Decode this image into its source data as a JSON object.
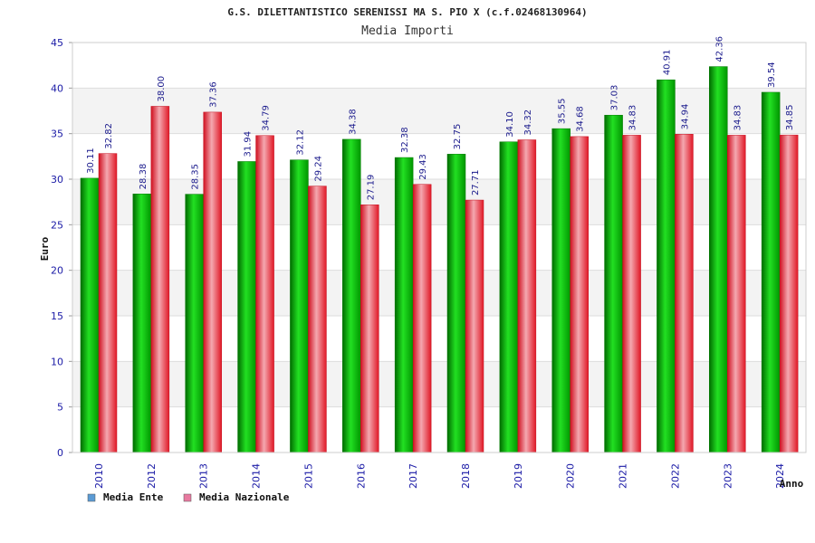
{
  "chart_data": {
    "type": "bar",
    "title": "G.S. DILETTANTISTICO SERENISSI MA S. PIO X (c.f.02468130964)",
    "subtitle": "Media Importi",
    "ylabel": "Euro",
    "xlabel": "Anno",
    "ylim": [
      0,
      45
    ],
    "yticks": [
      0,
      5,
      10,
      15,
      20,
      25,
      30,
      35,
      40,
      45
    ],
    "grid": true,
    "legend_position": "bottom-left",
    "categories": [
      "2010",
      "2012",
      "2013",
      "2014",
      "2015",
      "2016",
      "2017",
      "2018",
      "2019",
      "2020",
      "2021",
      "2022",
      "2023",
      "2024"
    ],
    "series": [
      {
        "name": "Media Ente",
        "color": "#00b400",
        "legend_color": "#5b9bd5",
        "values": [
          30.11,
          28.38,
          28.35,
          31.94,
          32.12,
          34.38,
          32.38,
          32.75,
          34.1,
          35.55,
          37.03,
          40.91,
          42.36,
          39.54
        ],
        "labels": [
          "30.11",
          "28.38",
          "28.35",
          "31.94",
          "32.12",
          "34.38",
          "32.38",
          "32.75",
          "34.10",
          "35.55",
          "37.03",
          "40.91",
          "42.36",
          "39.54"
        ]
      },
      {
        "name": "Media Nazionale",
        "color": "#e8202a",
        "legend_color": "#e87aa0",
        "values": [
          32.82,
          38.0,
          37.36,
          34.79,
          29.24,
          27.19,
          29.43,
          27.71,
          34.32,
          34.68,
          34.83,
          34.94,
          34.83,
          34.85
        ],
        "labels": [
          "32.82",
          "38.00",
          "37.36",
          "34.79",
          "29.24",
          "27.19",
          "29.43",
          "27.71",
          "34.32",
          "34.68",
          "34.83",
          "34.94",
          "34.83",
          "34.85"
        ]
      }
    ]
  }
}
